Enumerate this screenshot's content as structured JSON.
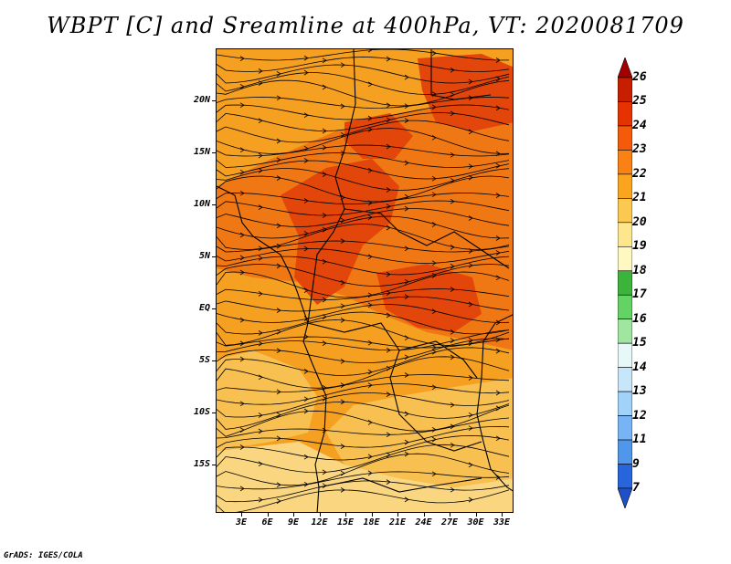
{
  "title": "WBPT [C] and Sreamline at 400hPa, VT: 2020081709",
  "credit": "GrADS: IGES/COLA",
  "map": {
    "lat_labels": [
      "20N",
      "15N",
      "10N",
      "5N",
      "EQ",
      "5S",
      "10S",
      "15S"
    ],
    "lon_labels": [
      "3E",
      "6E",
      "9E",
      "12E",
      "15E",
      "18E",
      "21E",
      "24E",
      "27E",
      "30E",
      "33E"
    ]
  },
  "colorbar": {
    "levels": [
      "26",
      "25",
      "24",
      "23",
      "22",
      "21",
      "20",
      "19",
      "18",
      "17",
      "16",
      "15",
      "14",
      "13",
      "12",
      "11",
      "9",
      "7"
    ],
    "colors": [
      "#a50000",
      "#c81e00",
      "#e63200",
      "#f55a0a",
      "#fa8214",
      "#fba51e",
      "#fcc850",
      "#fde68c",
      "#fff8c0",
      "#3cb43c",
      "#64d264",
      "#a0e6a0",
      "#e6f8f8",
      "#c8e6fa",
      "#a0d2fa",
      "#78b4f5",
      "#5096eb",
      "#2864dc",
      "#1e50c8"
    ]
  },
  "field_palette": {
    "hot": "#e2460a",
    "warm": "#f07814",
    "mid": "#f5a020",
    "cool": "#f8c050",
    "pale": "#fad680"
  }
}
